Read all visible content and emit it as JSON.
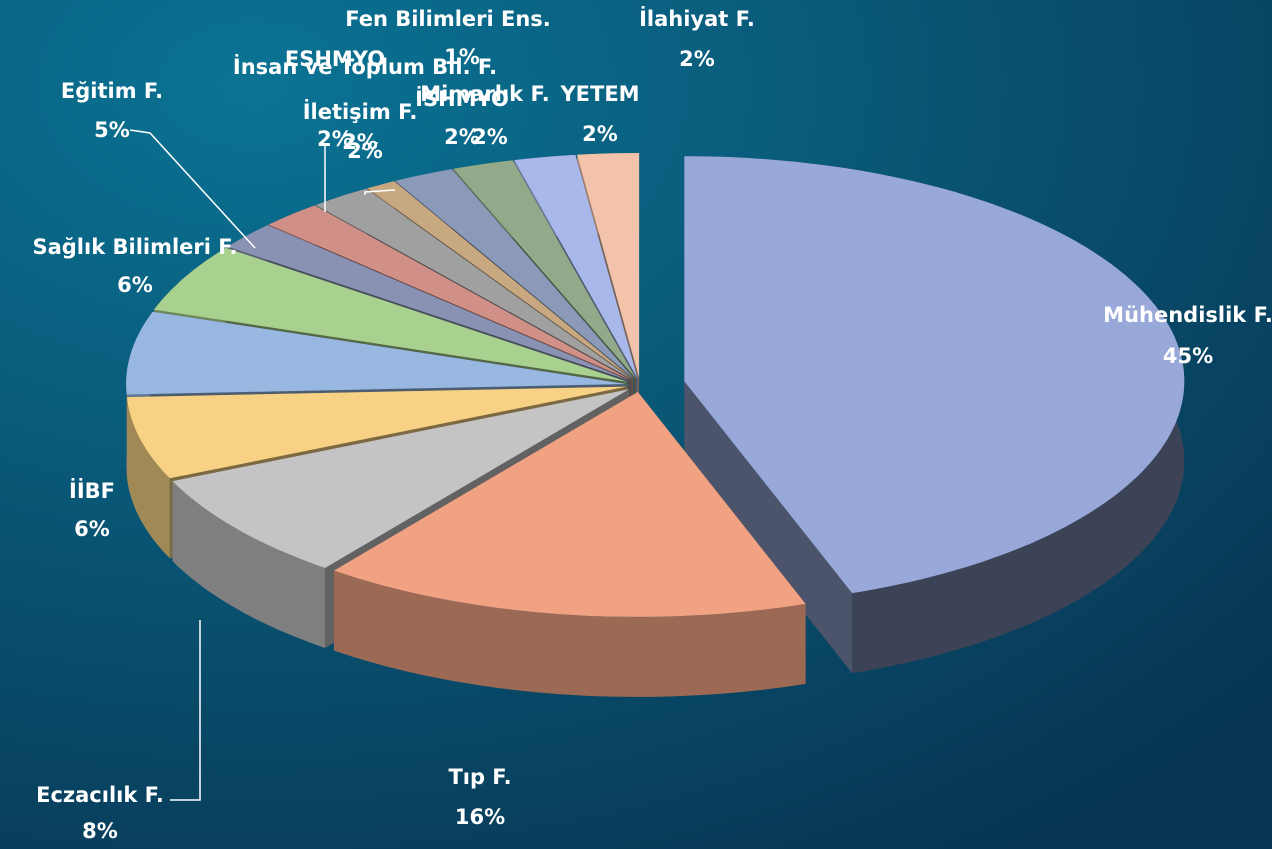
{
  "chart_data": {
    "type": "pie3d",
    "categories": [
      "Mühendislik F.",
      "Tıp F.",
      "Eczacılık F.",
      "İİBF",
      "Sağlık Bilimleri F.",
      "Eğitim F.",
      "İnsan ve Toplum Bil. F.",
      "ESHMYO",
      "İletişim F.",
      "Fen Bilimleri Ens.",
      "Mimarlık F.",
      "İSHMYO",
      "YETEM",
      "İlahiyat F."
    ],
    "values": [
      45,
      16,
      8,
      6,
      6,
      5,
      2,
      2,
      2,
      1,
      2,
      2,
      2,
      2
    ],
    "value_labels": [
      "45%",
      "16%",
      "8%",
      "6%",
      "6%",
      "5%",
      "2%",
      "2%",
      "2%",
      "1%",
      "2%",
      "2%",
      "2%",
      "2%"
    ],
    "colors": [
      "#98a8d8",
      "#f0a282",
      "#c4c4c4",
      "#f8d284",
      "#98b8e2",
      "#a8d08e",
      "#8a92b4",
      "#d09088",
      "#a0a0a0",
      "#c8a880",
      "#8a9ab8",
      "#92aa8a",
      "#a8b8ea",
      "#f2c2aa"
    ]
  }
}
